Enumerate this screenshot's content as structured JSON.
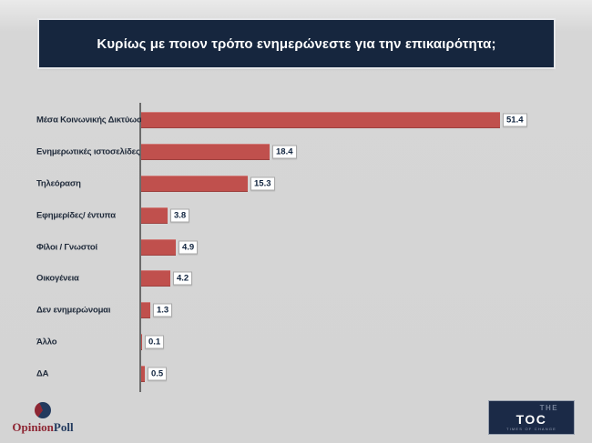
{
  "header": {
    "title": "Κυρίως με ποιον τρόπο ενημερώνεστε για την επικαιρότητα;"
  },
  "chart_data": {
    "type": "bar",
    "orientation": "horizontal",
    "title": "Κυρίως με ποιον τρόπο ενημερώνεστε για την επικαιρότητα;",
    "categories": [
      "Μέσα Κοινωνικής Δικτύωσης",
      "Ενημερωτικές ιστοσελίδες",
      "Τηλεόραση",
      "Εφημερίδες/ έντυπα",
      "Φίλοι / Γνωστοί",
      "Οικογένεια",
      "Δεν ενημερώνομαι",
      "Άλλο",
      "ΔΑ"
    ],
    "values": [
      51.4,
      18.4,
      15.3,
      3.8,
      4.9,
      4.2,
      1.3,
      0.1,
      0.5
    ],
    "xlabel": "",
    "ylabel": "",
    "xlim": [
      0,
      52
    ],
    "grid": false,
    "legend": false,
    "value_labels_shown": true,
    "bar_color": "#c0504d",
    "axis_color": "#6b6b6b"
  },
  "footer": {
    "opinionpoll": {
      "brand_part1": "Opinion",
      "brand_part2": "Poll"
    },
    "toc": {
      "line1": "THE",
      "line2": "TOC",
      "tagline": "Times of Change"
    }
  },
  "colors": {
    "background": "#d4d4d4",
    "banner_bg": "#16263e",
    "banner_text": "#ffffff",
    "bar": "#c0504d",
    "label_text": "#1f2a3a",
    "value_text": "#10243f",
    "op_red": "#8e2633",
    "op_navy": "#223a5e",
    "toc_bg": "#1b2a47"
  }
}
